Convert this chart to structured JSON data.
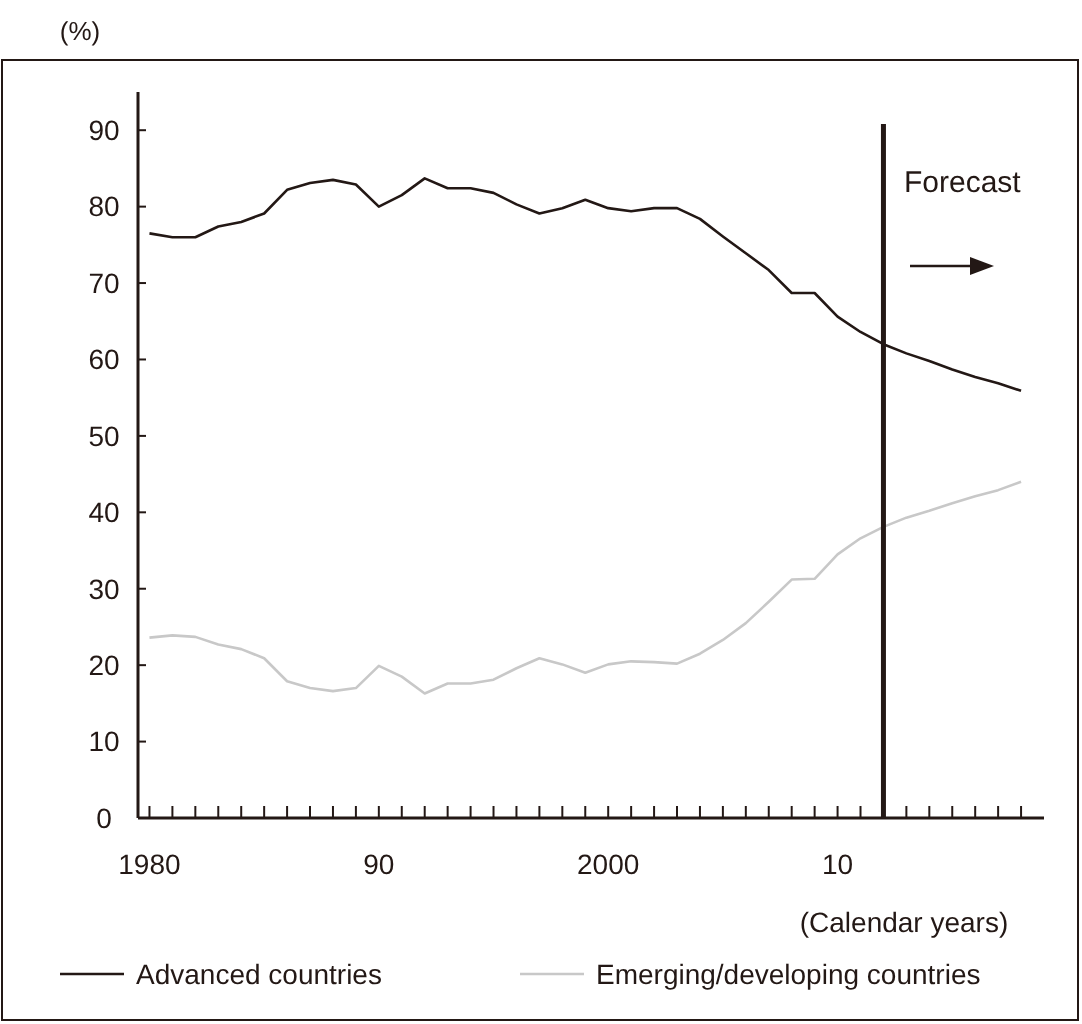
{
  "chart_data": {
    "type": "line",
    "ylabel": "(%)",
    "xlabel": "(Calendar years)",
    "x": [
      1980,
      1981,
      1982,
      1983,
      1984,
      1985,
      1986,
      1987,
      1988,
      1989,
      1990,
      1991,
      1992,
      1993,
      1994,
      1995,
      1996,
      1997,
      1998,
      1999,
      2000,
      2001,
      2002,
      2003,
      2004,
      2005,
      2006,
      2007,
      2008,
      2009,
      2010,
      2011,
      2012,
      2013,
      2014,
      2015,
      2016,
      2017,
      2018
    ],
    "series": [
      {
        "name": "Advanced countries",
        "color": "#231815",
        "values": [
          76.5,
          76.0,
          76.0,
          77.4,
          78.0,
          79.1,
          82.2,
          83.1,
          83.5,
          82.9,
          80.0,
          81.5,
          83.7,
          82.4,
          82.4,
          81.8,
          80.3,
          79.1,
          79.8,
          80.9,
          79.8,
          79.4,
          79.8,
          79.8,
          78.4,
          76.1,
          73.9,
          71.7,
          68.7,
          68.7,
          65.6,
          63.6,
          62.0,
          60.8,
          59.8,
          58.7,
          57.7,
          56.9,
          55.9
        ]
      },
      {
        "name": "Emerging/developing countries",
        "color": "#c8c8c8",
        "values": [
          23.6,
          23.9,
          23.7,
          22.7,
          22.1,
          20.9,
          17.9,
          17.0,
          16.6,
          17.0,
          19.9,
          18.5,
          16.3,
          17.6,
          17.6,
          18.1,
          19.6,
          20.9,
          20.1,
          19.0,
          20.1,
          20.5,
          20.4,
          20.2,
          21.5,
          23.3,
          25.5,
          28.3,
          31.2,
          31.3,
          34.5,
          36.6,
          38.1,
          39.3,
          40.2,
          41.2,
          42.1,
          42.9,
          44.0
        ]
      }
    ],
    "xlim": [
      1979.5,
      2019
    ],
    "xticks": [
      {
        "value": 1980,
        "label": "1980"
      },
      {
        "value": 1981,
        "label": null
      },
      {
        "value": 1982,
        "label": null
      },
      {
        "value": 1983,
        "label": null
      },
      {
        "value": 1984,
        "label": null
      },
      {
        "value": 1985,
        "label": null
      },
      {
        "value": 1986,
        "label": null
      },
      {
        "value": 1987,
        "label": null
      },
      {
        "value": 1988,
        "label": null
      },
      {
        "value": 1989,
        "label": null
      },
      {
        "value": 1990,
        "label": "90"
      },
      {
        "value": 1991,
        "label": null
      },
      {
        "value": 1992,
        "label": null
      },
      {
        "value": 1993,
        "label": null
      },
      {
        "value": 1994,
        "label": null
      },
      {
        "value": 1995,
        "label": null
      },
      {
        "value": 1996,
        "label": null
      },
      {
        "value": 1997,
        "label": null
      },
      {
        "value": 1998,
        "label": null
      },
      {
        "value": 1999,
        "label": null
      },
      {
        "value": 2000,
        "label": "2000"
      },
      {
        "value": 2001,
        "label": null
      },
      {
        "value": 2002,
        "label": null
      },
      {
        "value": 2003,
        "label": null
      },
      {
        "value": 2004,
        "label": null
      },
      {
        "value": 2005,
        "label": null
      },
      {
        "value": 2006,
        "label": null
      },
      {
        "value": 2007,
        "label": null
      },
      {
        "value": 2008,
        "label": null
      },
      {
        "value": 2009,
        "label": null
      },
      {
        "value": 2010,
        "label": "10"
      },
      {
        "value": 2011,
        "label": null
      },
      {
        "value": 2012,
        "label": null
      },
      {
        "value": 2013,
        "label": null
      },
      {
        "value": 2014,
        "label": null
      },
      {
        "value": 2015,
        "label": null
      },
      {
        "value": 2016,
        "label": null
      },
      {
        "value": 2017,
        "label": null
      },
      {
        "value": 2018,
        "label": null
      }
    ],
    "ylim": [
      0,
      95
    ],
    "yticks": [
      0,
      10,
      20,
      30,
      40,
      50,
      60,
      70,
      80,
      90
    ],
    "ref_lines": [
      {
        "axis": "x",
        "value": 2012,
        "color": "#231815"
      }
    ],
    "annotations": [
      "Forecast"
    ],
    "legend": "bottom",
    "grid": false,
    "marker": "none",
    "line_style": "solid"
  }
}
